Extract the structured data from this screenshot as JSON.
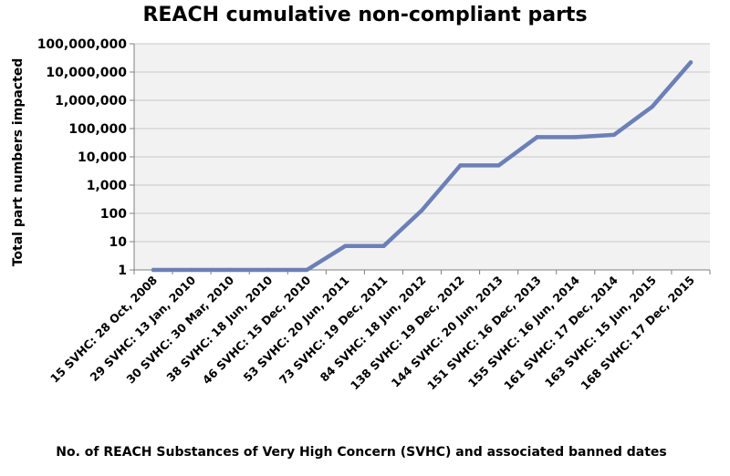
{
  "chart_data": {
    "type": "line",
    "title": "REACH cumulative non-compliant parts",
    "xlabel": "No. of REACH Substances of Very High Concern (SVHC) and associated banned dates",
    "ylabel": "Total part numbers impacted",
    "y_scale": "log",
    "ylim": [
      1,
      100000000
    ],
    "y_ticks": [
      1,
      10,
      100,
      1000,
      10000,
      100000,
      1000000,
      10000000,
      100000000
    ],
    "y_tick_labels": [
      "1",
      "10",
      "100",
      "1,000",
      "10,000",
      "100,000",
      "1,000,000",
      "10,000,000",
      "100,000,000"
    ],
    "grid": true,
    "legend": "none",
    "colors": {
      "line": "#6b80b6",
      "plot_background": "#f2f2f2",
      "gridline": "#c8c8c8",
      "axis": "#808080"
    },
    "categories": [
      "15 SVHC: 28 Oct, 2008",
      "29 SVHC: 13 Jan, 2010",
      "30 SVHC: 30 Mar, 2010",
      "38 SVHC: 18 Jun, 2010",
      "46 SVHC: 15 Dec, 2010",
      "53 SVHC: 20 Jun, 2011",
      "73 SVHC: 19 Dec, 2011",
      "84 SVHC: 18 Jun, 2012",
      "138 SVHC: 19 Dec, 2012",
      "144 SVHC: 20 Jun, 2013",
      "151 SVHC: 16 Dec, 2013",
      "155 SVHC: 16 Jun, 2014",
      "161 SVHC: 17 Dec, 2014",
      "163 SVHC: 15 Jun, 2015",
      "168 SVHC: 17 Dec, 2015"
    ],
    "series": [
      {
        "values": [
          1,
          1,
          1,
          1,
          1,
          7,
          7,
          130,
          5000,
          5000,
          50000,
          50000,
          60000,
          600000,
          22000000
        ]
      }
    ]
  }
}
